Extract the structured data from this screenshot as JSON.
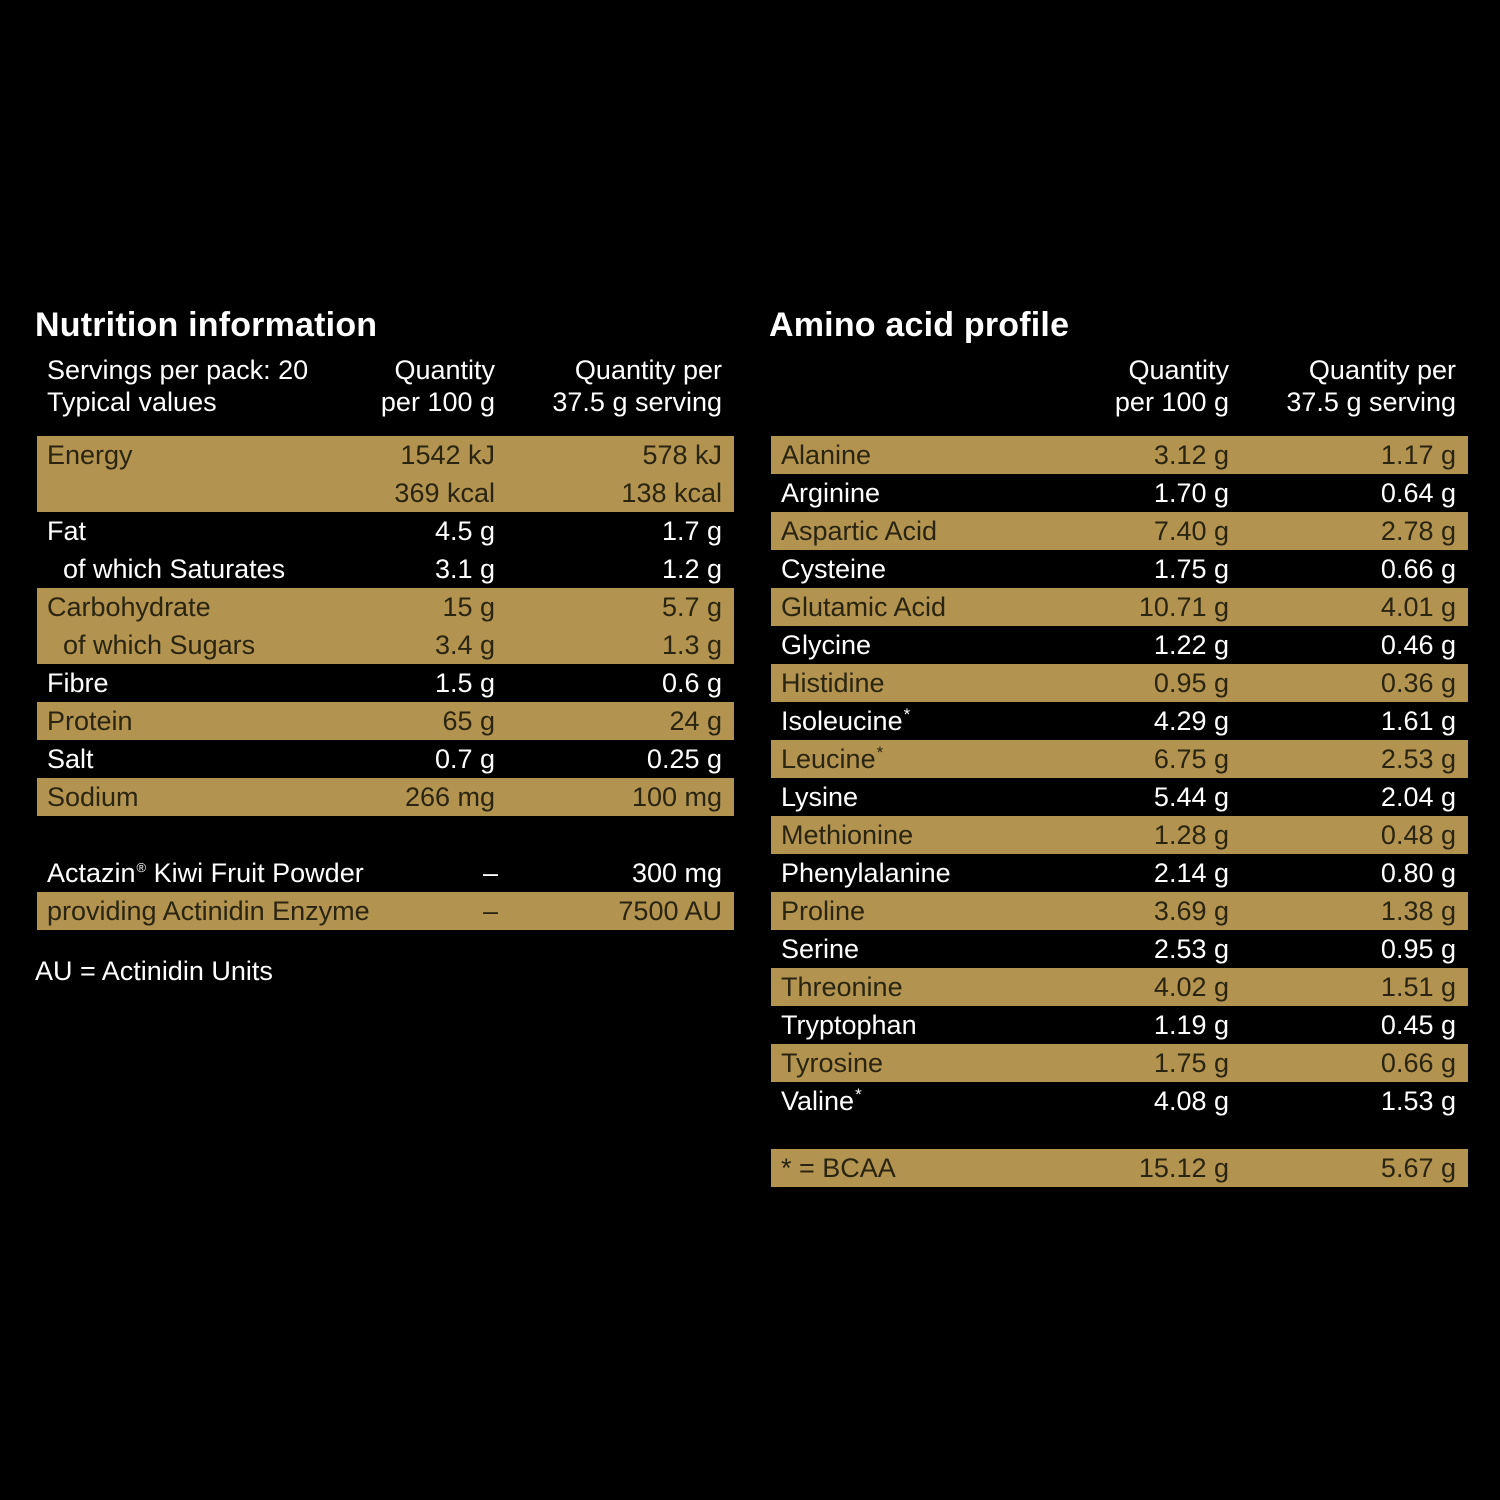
{
  "nutrition": {
    "title": "Nutrition information",
    "header": {
      "col1_line1": "Servings per pack: 20",
      "col1_line2": "Typical values",
      "col2_line1": "Quantity",
      "col2_line2": "per 100 g",
      "col3_line1": "Quantity per",
      "col3_line2": "37.5 g serving"
    },
    "rows": [
      {
        "label": "Energy",
        "per100": "1542 kJ",
        "serving": "578 kJ"
      },
      {
        "label": "",
        "per100": "369 kcal",
        "serving": "138 kcal"
      },
      {
        "label": "Fat",
        "per100": "4.5 g",
        "serving": "1.7 g"
      },
      {
        "label": "of which Saturates",
        "per100": "3.1 g",
        "serving": "1.2 g"
      },
      {
        "label": "Carbohydrate",
        "per100": "15 g",
        "serving": "5.7 g"
      },
      {
        "label": "of which Sugars",
        "per100": "3.4 g",
        "serving": "1.3 g"
      },
      {
        "label": "Fibre",
        "per100": "1.5 g",
        "serving": "0.6 g"
      },
      {
        "label": "Protein",
        "per100": "65 g",
        "serving": "24 g"
      },
      {
        "label": "Salt",
        "per100": "0.7 g",
        "serving": "0.25 g"
      },
      {
        "label": "Sodium",
        "per100": "266 mg",
        "serving": "100 mg"
      }
    ],
    "extras": [
      {
        "label": "Actazin",
        "mark": "®",
        "label_rest": " Kiwi Fruit Powder",
        "per100": "–",
        "serving": "300 mg"
      },
      {
        "label": "providing Actinidin Enzyme",
        "per100": "–",
        "serving": "7500 AU"
      }
    ],
    "footnote": "AU = Actinidin Units"
  },
  "amino": {
    "title": "Amino acid profile",
    "header": {
      "col2_line1": "Quantity",
      "col2_line2": "per 100 g",
      "col3_line1": "Quantity per",
      "col3_line2": "37.5 g serving"
    },
    "rows": [
      {
        "label": "Alanine",
        "mark": "",
        "per100": "3.12 g",
        "serving": "1.17 g"
      },
      {
        "label": "Arginine",
        "mark": "",
        "per100": "1.70 g",
        "serving": "0.64 g"
      },
      {
        "label": "Aspartic Acid",
        "mark": "",
        "per100": "7.40 g",
        "serving": "2.78 g"
      },
      {
        "label": "Cysteine",
        "mark": "",
        "per100": "1.75 g",
        "serving": "0.66 g"
      },
      {
        "label": "Glutamic Acid",
        "mark": "",
        "per100": "10.71 g",
        "serving": "4.01 g"
      },
      {
        "label": "Glycine",
        "mark": "",
        "per100": "1.22 g",
        "serving": "0.46 g"
      },
      {
        "label": "Histidine",
        "mark": "",
        "per100": "0.95 g",
        "serving": "0.36 g"
      },
      {
        "label": "Isoleucine",
        "mark": "*",
        "per100": "4.29 g",
        "serving": "1.61 g"
      },
      {
        "label": "Leucine",
        "mark": "*",
        "per100": "6.75 g",
        "serving": "2.53 g"
      },
      {
        "label": "Lysine",
        "mark": "",
        "per100": "5.44 g",
        "serving": "2.04 g"
      },
      {
        "label": "Methionine",
        "mark": "",
        "per100": "1.28 g",
        "serving": "0.48 g"
      },
      {
        "label": "Phenylalanine",
        "mark": "",
        "per100": "2.14 g",
        "serving": "0.80 g"
      },
      {
        "label": "Proline",
        "mark": "",
        "per100": "3.69 g",
        "serving": "1.38 g"
      },
      {
        "label": "Serine",
        "mark": "",
        "per100": "2.53 g",
        "serving": "0.95 g"
      },
      {
        "label": "Threonine",
        "mark": "",
        "per100": "4.02 g",
        "serving": "1.51 g"
      },
      {
        "label": "Tryptophan",
        "mark": "",
        "per100": "1.19 g",
        "serving": "0.45 g"
      },
      {
        "label": "Tyrosine",
        "mark": "",
        "per100": "1.75 g",
        "serving": "0.66 g"
      },
      {
        "label": "Valine",
        "mark": "*",
        "per100": "4.08 g",
        "serving": "1.53 g"
      }
    ],
    "bcaa": {
      "label": "* = BCAA",
      "per100": "15.12 g",
      "serving": "5.67 g"
    }
  },
  "colors": {
    "background": "#000000",
    "highlight": "#b29450",
    "highlight_text": "#2a2410",
    "text": "#ffffff"
  }
}
